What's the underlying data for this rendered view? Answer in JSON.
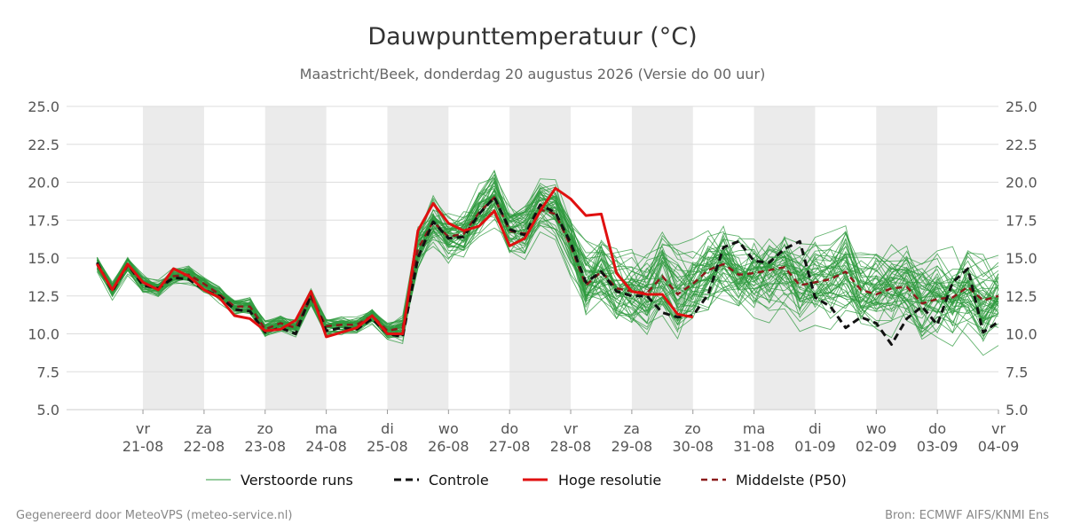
{
  "chart_data": {
    "type": "line",
    "title": "Dauwpunttemperatuur (°C)",
    "subtitle": "Maastricht/Beek, donderdag 20 augustus 2026 (Versie do 00 uur)",
    "ylim": [
      5.0,
      25.0
    ],
    "yticks": [
      "5.0",
      "7.5",
      "10.0",
      "12.5",
      "15.0",
      "17.5",
      "20.0",
      "22.5",
      "25.0"
    ],
    "xlim": [
      -1.25,
      14.0
    ],
    "xticks": [
      {
        "day": "vr",
        "date": "21-08"
      },
      {
        "day": "za",
        "date": "22-08"
      },
      {
        "day": "zo",
        "date": "23-08"
      },
      {
        "day": "ma",
        "date": "24-08"
      },
      {
        "day": "di",
        "date": "25-08"
      },
      {
        "day": "wo",
        "date": "26-08"
      },
      {
        "day": "do",
        "date": "27-08"
      },
      {
        "day": "vr",
        "date": "28-08"
      },
      {
        "day": "za",
        "date": "29-08"
      },
      {
        "day": "zo",
        "date": "30-08"
      },
      {
        "day": "ma",
        "date": "31-08"
      },
      {
        "day": "di",
        "date": "01-09"
      },
      {
        "day": "wo",
        "date": "02-09"
      },
      {
        "day": "do",
        "date": "03-09"
      },
      {
        "day": "vr",
        "date": "04-09"
      }
    ],
    "weekend_bands": [
      [
        0,
        1
      ],
      [
        2,
        3
      ],
      [
        4,
        5
      ],
      [
        6,
        7
      ],
      [
        8,
        9
      ],
      [
        10,
        11
      ],
      [
        12,
        13
      ]
    ],
    "grid": true,
    "legend_position": "bottom",
    "series": [
      {
        "name": "Controle",
        "color": "#111111",
        "style": "dashed",
        "points": [
          [
            -0.75,
            14.7
          ],
          [
            -0.5,
            12.8
          ],
          [
            -0.25,
            14.6
          ],
          [
            0,
            13.2
          ],
          [
            0.25,
            13.0
          ],
          [
            0.5,
            13.7
          ],
          [
            0.75,
            13.6
          ],
          [
            1,
            12.9
          ],
          [
            1.25,
            12.5
          ],
          [
            1.5,
            11.6
          ],
          [
            1.75,
            11.5
          ],
          [
            2,
            10.1
          ],
          [
            2.25,
            10.4
          ],
          [
            2.5,
            10.0
          ],
          [
            2.75,
            12.6
          ],
          [
            3,
            10.2
          ],
          [
            3.25,
            10.4
          ],
          [
            3.5,
            10.3
          ],
          [
            3.75,
            11.0
          ],
          [
            4,
            10.0
          ],
          [
            4.25,
            9.8
          ],
          [
            4.5,
            15.0
          ],
          [
            4.75,
            17.4
          ],
          [
            5,
            16.3
          ],
          [
            5.25,
            16.4
          ],
          [
            5.5,
            17.9
          ],
          [
            5.75,
            19.0
          ],
          [
            6,
            16.9
          ],
          [
            6.25,
            16.5
          ],
          [
            6.5,
            18.5
          ],
          [
            6.75,
            18.0
          ],
          [
            7,
            16.0
          ],
          [
            7.25,
            13.4
          ],
          [
            7.5,
            14.1
          ],
          [
            7.75,
            12.8
          ],
          [
            8,
            12.5
          ],
          [
            8.25,
            12.5
          ],
          [
            8.5,
            11.4
          ],
          [
            8.75,
            11.1
          ],
          [
            9,
            11.2
          ],
          [
            9.25,
            12.6
          ],
          [
            9.5,
            15.7
          ],
          [
            9.75,
            16.1
          ],
          [
            10,
            14.8
          ],
          [
            10.25,
            14.7
          ],
          [
            10.5,
            15.6
          ],
          [
            10.75,
            16.1
          ],
          [
            11,
            12.4
          ],
          [
            11.25,
            11.8
          ],
          [
            11.5,
            10.4
          ],
          [
            11.75,
            11.1
          ],
          [
            12,
            10.7
          ],
          [
            12.25,
            9.3
          ],
          [
            12.5,
            11.0
          ],
          [
            12.75,
            11.8
          ],
          [
            13,
            10.6
          ],
          [
            13.25,
            13.4
          ],
          [
            13.5,
            14.3
          ],
          [
            13.75,
            10.1
          ],
          [
            14,
            10.8
          ]
        ]
      },
      {
        "name": "Hoge resolutie",
        "color": "#e01010",
        "style": "solid",
        "points": [
          [
            -0.75,
            14.6
          ],
          [
            -0.5,
            12.9
          ],
          [
            -0.25,
            14.6
          ],
          [
            0,
            13.4
          ],
          [
            0.25,
            12.9
          ],
          [
            0.5,
            14.3
          ],
          [
            0.75,
            13.8
          ],
          [
            1,
            12.9
          ],
          [
            1.25,
            12.4
          ],
          [
            1.5,
            11.2
          ],
          [
            1.75,
            11.0
          ],
          [
            2,
            10.2
          ],
          [
            2.25,
            10.3
          ],
          [
            2.5,
            10.9
          ],
          [
            2.75,
            12.8
          ],
          [
            3,
            9.8
          ],
          [
            3.25,
            10.1
          ],
          [
            3.5,
            10.4
          ],
          [
            3.75,
            11.2
          ],
          [
            4,
            10.0
          ],
          [
            4.25,
            10.0
          ],
          [
            4.5,
            16.8
          ],
          [
            4.75,
            18.6
          ],
          [
            5,
            17.3
          ],
          [
            5.25,
            16.8
          ],
          [
            5.5,
            17.1
          ],
          [
            5.75,
            18.1
          ],
          [
            6,
            15.8
          ],
          [
            6.25,
            16.3
          ],
          [
            6.5,
            18.1
          ],
          [
            6.75,
            19.6
          ],
          [
            7,
            18.9
          ],
          [
            7.25,
            17.8
          ],
          [
            7.5,
            17.9
          ],
          [
            7.75,
            14.0
          ],
          [
            8,
            12.8
          ],
          [
            8.25,
            12.6
          ],
          [
            8.5,
            12.6
          ],
          [
            8.75,
            11.3
          ],
          [
            9,
            11.1
          ]
        ]
      },
      {
        "name": "Middelste (P50)",
        "color": "#8b1a1a",
        "style": "dashed",
        "points": [
          [
            -0.75,
            14.6
          ],
          [
            -0.5,
            12.9
          ],
          [
            -0.25,
            14.5
          ],
          [
            0,
            13.3
          ],
          [
            0.25,
            13.0
          ],
          [
            0.5,
            13.8
          ],
          [
            0.75,
            13.9
          ],
          [
            1,
            13.3
          ],
          [
            1.25,
            12.6
          ],
          [
            1.5,
            11.8
          ],
          [
            1.75,
            11.8
          ],
          [
            2,
            10.3
          ],
          [
            2.25,
            10.7
          ],
          [
            2.5,
            10.4
          ],
          [
            2.75,
            12.4
          ],
          [
            3,
            10.5
          ],
          [
            3.25,
            10.6
          ],
          [
            3.5,
            10.6
          ],
          [
            3.75,
            11.2
          ],
          [
            4,
            10.2
          ],
          [
            4.25,
            10.4
          ],
          [
            4.5,
            15.6
          ],
          [
            4.75,
            17.4
          ],
          [
            5,
            16.4
          ],
          [
            5.25,
            16.6
          ],
          [
            5.5,
            18.0
          ],
          [
            5.75,
            19.0
          ],
          [
            6,
            16.8
          ],
          [
            6.25,
            16.6
          ],
          [
            6.5,
            18.2
          ],
          [
            6.75,
            17.9
          ],
          [
            7,
            15.8
          ],
          [
            7.25,
            13.2
          ],
          [
            7.5,
            14.1
          ],
          [
            7.75,
            13.0
          ],
          [
            8,
            12.8
          ],
          [
            8.25,
            12.7
          ],
          [
            8.5,
            13.8
          ],
          [
            8.75,
            12.6
          ],
          [
            9,
            13.3
          ],
          [
            9.25,
            14.2
          ],
          [
            9.5,
            14.6
          ],
          [
            9.75,
            13.9
          ],
          [
            10,
            14.0
          ],
          [
            10.25,
            14.2
          ],
          [
            10.5,
            14.4
          ],
          [
            10.75,
            13.2
          ],
          [
            11,
            13.4
          ],
          [
            11.25,
            13.6
          ],
          [
            11.5,
            14.1
          ],
          [
            11.75,
            12.9
          ],
          [
            12,
            12.6
          ],
          [
            12.25,
            13.0
          ],
          [
            12.5,
            13.1
          ],
          [
            12.75,
            12.0
          ],
          [
            13,
            12.3
          ],
          [
            13.25,
            12.4
          ],
          [
            13.5,
            13.1
          ],
          [
            13.75,
            12.2
          ],
          [
            14,
            12.5
          ]
        ]
      }
    ],
    "ensemble": {
      "name": "Verstoorde runs",
      "color": "#2e9a3e",
      "member_count": 50
    }
  },
  "legend": {
    "items": [
      {
        "label": "Verstoorde runs",
        "color": "#2e9a3e",
        "style": "thin"
      },
      {
        "label": "Controle",
        "color": "#111111",
        "style": "dashed"
      },
      {
        "label": "Hoge resolutie",
        "color": "#e01010",
        "style": "solid"
      },
      {
        "label": "Middelste (P50)",
        "color": "#8b1a1a",
        "style": "dashed"
      }
    ]
  },
  "footer": {
    "left": "Gegenereerd door MeteoVPS (meteo-service.nl)",
    "right": "Bron: ECMWF AIFS/KNMI Ens"
  }
}
